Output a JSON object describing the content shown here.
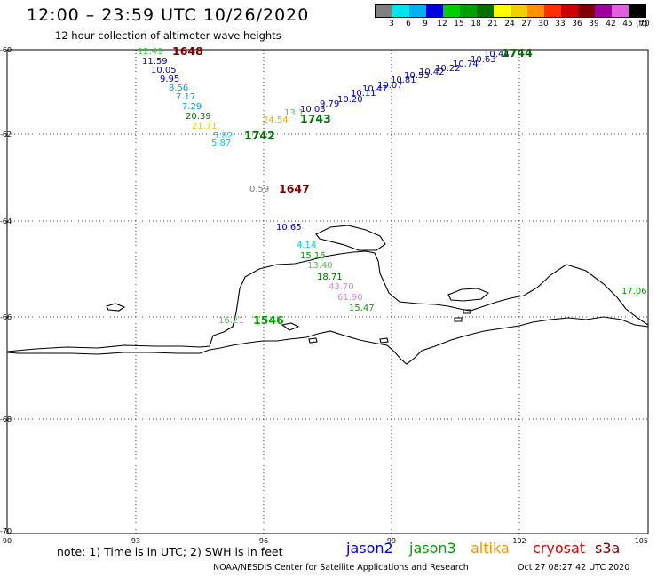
{
  "title": "12:00 – 23:59 UTC 10/26/2020",
  "subtitle": "12 hour collection of altimeter wave heights",
  "legend": {
    "swatch_colors": [
      "#808080",
      "#00e5ee",
      "#00b0f0",
      "#0000dd",
      "#00d000",
      "#00a000",
      "#007000",
      "#ffff00",
      "#f0d000",
      "#ff9000",
      "#ff3000",
      "#cc0000",
      "#800000",
      "#a000a0",
      "#e060e0",
      "#000000"
    ],
    "labels": [
      "3",
      "6",
      "9",
      "12",
      "15",
      "18",
      "21",
      "24",
      "27",
      "30",
      "33",
      "36",
      "39",
      "42",
      "45",
      "70"
    ],
    "unit": "(ft)"
  },
  "axes": {
    "lat_labels": [
      "-60",
      "-62",
      "-64",
      "-66",
      "-68",
      "-70"
    ],
    "lon_labels": [
      "90",
      "93",
      "96",
      "99",
      "102",
      "105"
    ]
  },
  "wave_points": [
    {
      "text": "12.49",
      "color": "#40d040"
    },
    {
      "text": "1648",
      "color": "#800000"
    },
    {
      "text": "11.59",
      "color": "#0000c0"
    },
    {
      "text": "10.05",
      "color": "#0000c0"
    },
    {
      "text": "9.95",
      "color": "#0000c0"
    },
    {
      "text": "8.56",
      "color": "#00a0e0"
    },
    {
      "text": "7.17",
      "color": "#00a0e0"
    },
    {
      "text": "7.29",
      "color": "#00a0e0"
    },
    {
      "text": "20.39",
      "color": "#007000"
    },
    {
      "text": "21.71",
      "color": "#e0d000"
    },
    {
      "text": "5.82",
      "color": "#00d0e0"
    },
    {
      "text": "5.87",
      "color": "#00d0e0"
    },
    {
      "text": "1742",
      "color": "#007000"
    },
    {
      "text": "24.54",
      "color": "#e0b000"
    },
    {
      "text": "13.1",
      "color": "#40d040"
    },
    {
      "text": "1743",
      "color": "#007000"
    },
    {
      "text": "10.03",
      "color": "#0000c0"
    },
    {
      "text": "9.79",
      "color": "#0000c0"
    },
    {
      "text": "10.20",
      "color": "#0000c0"
    },
    {
      "text": "10.11",
      "color": "#0000c0"
    },
    {
      "text": "10.47",
      "color": "#0000c0"
    },
    {
      "text": "10.07",
      "color": "#0000c0"
    },
    {
      "text": "10.81",
      "color": "#0000c0"
    },
    {
      "text": "10.53",
      "color": "#0000c0"
    },
    {
      "text": "10.42",
      "color": "#0000c0"
    },
    {
      "text": "10.22",
      "color": "#0000c0"
    },
    {
      "text": "10.74",
      "color": "#0000c0"
    },
    {
      "text": "10.63",
      "color": "#0000c0"
    },
    {
      "text": "10.44",
      "color": "#0000c0"
    },
    {
      "text": "1744",
      "color": "#007000"
    },
    {
      "text": "0.59",
      "color": "#808080"
    },
    {
      "text": "1647",
      "color": "#800000"
    },
    {
      "text": "10.65",
      "color": "#0000c0"
    },
    {
      "text": "4.14",
      "color": "#00d0e0"
    },
    {
      "text": "15.16",
      "color": "#00a000"
    },
    {
      "text": "13.40",
      "color": "#40d040"
    },
    {
      "text": "18.71",
      "color": "#007000"
    },
    {
      "text": "43.70",
      "color": "#e080e0"
    },
    {
      "text": "61.90",
      "color": "#e080e0"
    },
    {
      "text": "15.47",
      "color": "#00a000"
    },
    {
      "text": "17.06",
      "color": "#00a000"
    },
    {
      "text": "16.21",
      "color": "#40d040"
    },
    {
      "text": "1546",
      "color": "#00a000"
    }
  ],
  "footer": {
    "note": "note:  1) Time is in UTC;  2) SWH is in feet",
    "satellites": [
      {
        "name": "jason2",
        "color": "#0000e0"
      },
      {
        "name": "jason3",
        "color": "#00a000"
      },
      {
        "name": "altika",
        "color": "#ff9000"
      },
      {
        "name": "cryosat",
        "color": "#e00000"
      },
      {
        "name": "s3a",
        "color": "#800000"
      }
    ],
    "credit": "NOAA/NESDIS Center for Satellite Applications and Research",
    "timestamp": "Oct 27 08:27:42 UTC 2020"
  }
}
